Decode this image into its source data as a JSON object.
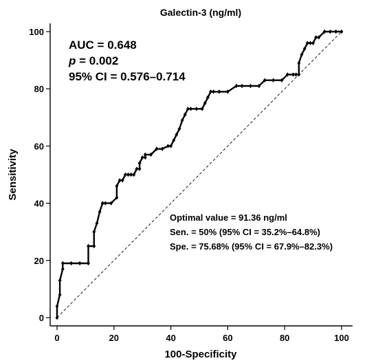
{
  "chart_data": {
    "type": "line",
    "title": "Galectin-3 (ng/ml)",
    "xlabel": "100-Specificity",
    "ylabel": "Sensitivity",
    "xlim": [
      0,
      100
    ],
    "ylim": [
      0,
      100
    ],
    "xticks": [
      "0",
      "20",
      "40",
      "60",
      "80",
      "100"
    ],
    "yticks": [
      "0",
      "20",
      "40",
      "60",
      "80",
      "100"
    ],
    "grid": false,
    "reference_line": "diagonal",
    "series": [
      {
        "x": [
          0,
          0,
          1,
          1,
          2,
          2,
          5,
          8,
          11,
          11,
          13,
          13,
          14,
          15,
          16,
          16,
          17,
          19,
          21,
          21,
          22,
          23,
          24,
          25,
          26,
          27,
          28,
          29,
          29,
          30,
          31,
          31,
          33,
          35,
          35,
          37,
          39,
          40,
          41,
          42,
          43,
          44,
          45,
          45,
          46,
          47,
          49,
          51,
          52,
          53,
          54,
          55,
          57,
          60,
          63,
          65,
          68,
          71,
          73,
          76,
          79,
          81,
          83,
          84,
          85,
          85,
          86,
          87,
          88,
          89,
          90,
          91,
          92,
          94,
          96,
          98,
          100
        ],
        "y": [
          0,
          4,
          8,
          13,
          17,
          19,
          19,
          19,
          19,
          25,
          25,
          30,
          33,
          37,
          40,
          40,
          40,
          40,
          42,
          46,
          48,
          48,
          50,
          50,
          50,
          50,
          52,
          52,
          54,
          56,
          56,
          57,
          57,
          59,
          59,
          59,
          60,
          60,
          62,
          64,
          66,
          69,
          71,
          71,
          73,
          73,
          73,
          73,
          75,
          77,
          79,
          79,
          79,
          79,
          81,
          81,
          81,
          81,
          83,
          83,
          83,
          85,
          85,
          85,
          85,
          89,
          92,
          94,
          96,
          96,
          96,
          98,
          98,
          100,
          100,
          100,
          100
        ]
      }
    ],
    "annotations": {
      "auc": "AUC = 0.648",
      "p_symbol": "p",
      "p_value": " = 0.002",
      "ci": "95% CI = 0.576–0.714",
      "optimal": "Optimal value = 91.36 ng/ml",
      "sensitivity": "Sen. = 50% (95% CI = 35.2%–64.8%)",
      "specificity": "Spe. = 75.68% (95% CI = 67.9%–82.3%)"
    }
  }
}
